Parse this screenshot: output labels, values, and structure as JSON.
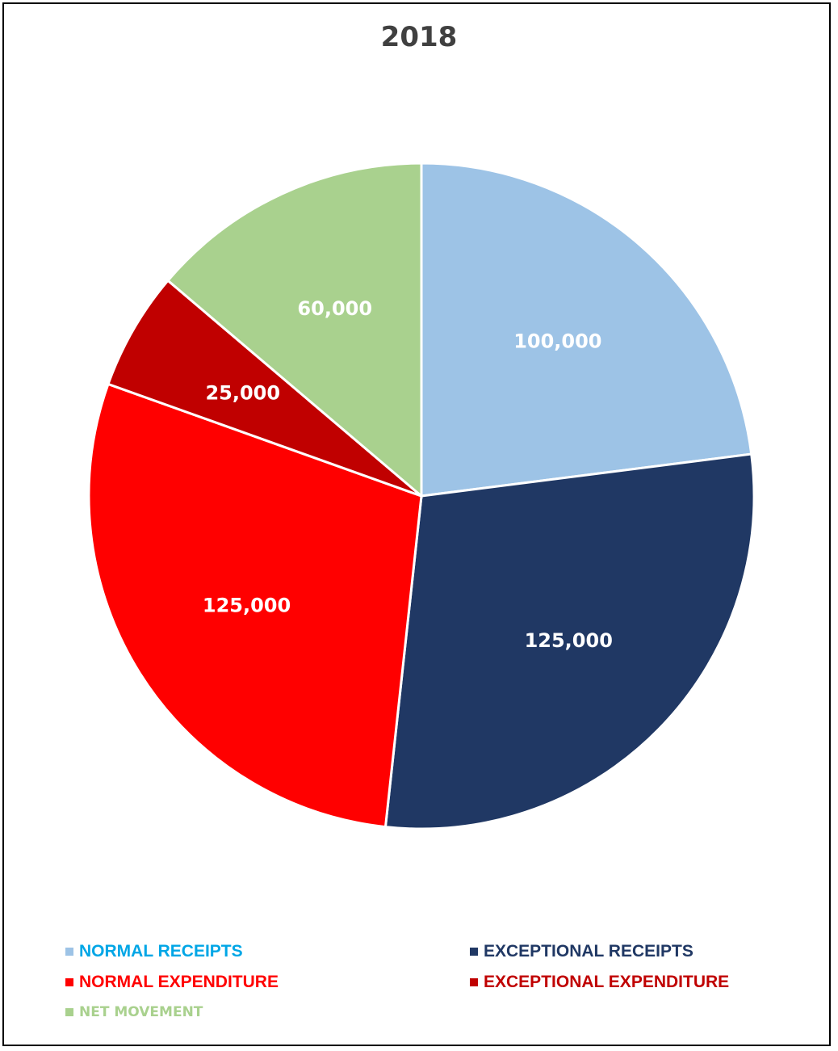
{
  "chart_data": {
    "type": "pie",
    "title": "2018",
    "slices": [
      {
        "label": "NORMAL RECEIPTS",
        "value": 100000,
        "value_label": "100,000",
        "color": "#9dc3e6",
        "legend_text_color": "#00a6e6"
      },
      {
        "label": "EXCEPTIONAL RECEIPTS",
        "value": 125000,
        "value_label": "125,000",
        "color": "#203864",
        "legend_text_color": "#203864"
      },
      {
        "label": "NORMAL EXPENDITURE",
        "value": 125000,
        "value_label": "125,000",
        "color": "#ff0000",
        "legend_text_color": "#ff0000"
      },
      {
        "label": "EXCEPTIONAL EXPENDITURE",
        "value": 25000,
        "value_label": "25,000",
        "color": "#c00000",
        "legend_text_color": "#c00000"
      },
      {
        "label": "NET MOVEMENT",
        "value": 60000,
        "value_label": "60,000",
        "color": "#a9d18e",
        "legend_text_color": "#a9d18e"
      }
    ],
    "start_angle": "12 o'clock",
    "direction": "clockwise",
    "legend_position": "bottom"
  }
}
